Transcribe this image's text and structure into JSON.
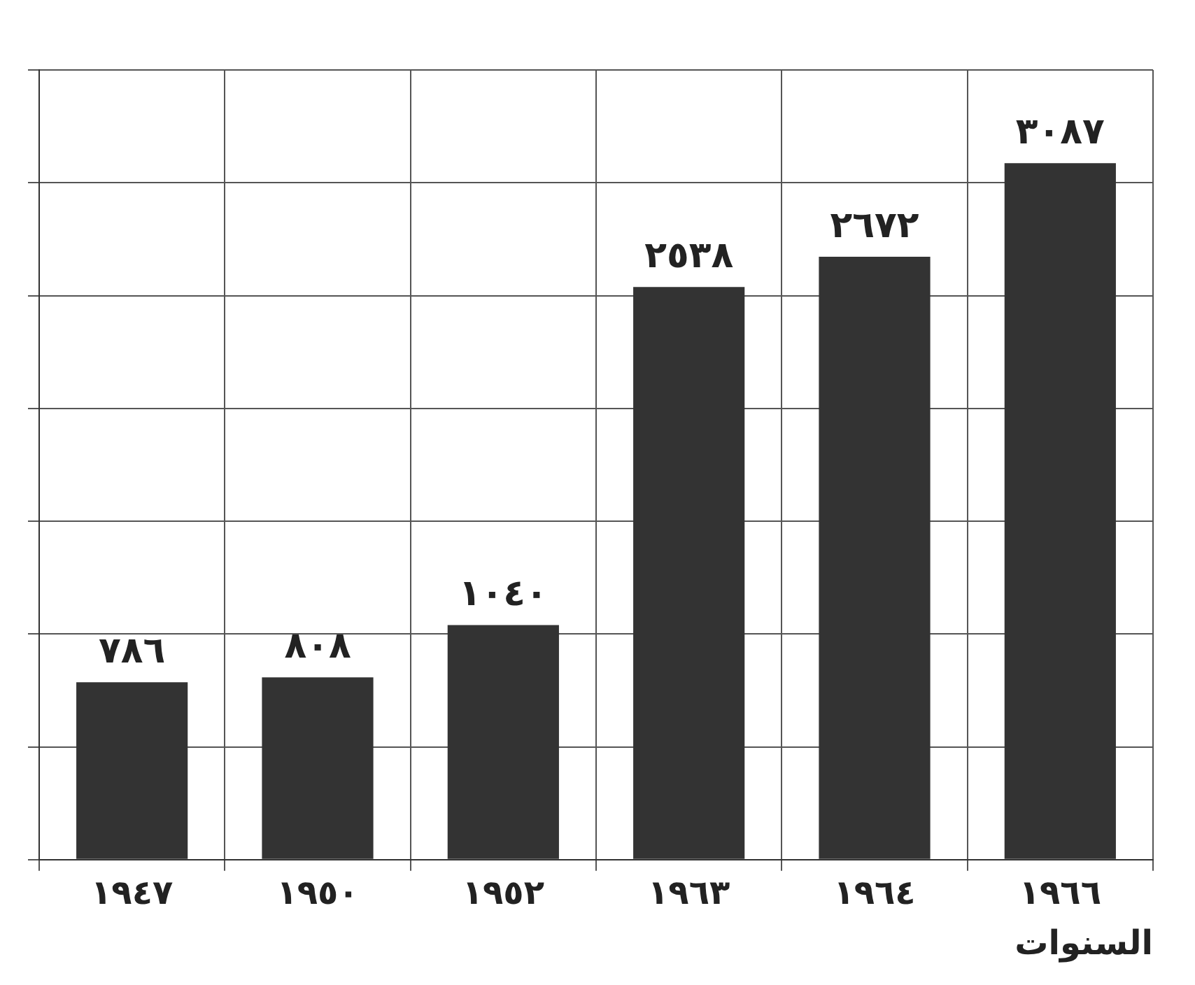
{
  "chart_data": {
    "type": "bar",
    "categories": [
      "١٩٤٧",
      "١٩٥٠",
      "١٩٥٢",
      "١٩٦٣",
      "١٩٦٤",
      "١٩٦٦"
    ],
    "values": [
      786,
      808,
      1040,
      2538,
      2672,
      3087
    ],
    "value_labels": [
      "٧٨٦",
      "٨٠٨",
      "١٠٤٠",
      "٢٥٣٨",
      "٢٦٧٢",
      "٣٠٨٧"
    ],
    "color": "#333333",
    "xlabel": "السنوات",
    "grid": true,
    "tick_labels": "x",
    "legend": false
  }
}
